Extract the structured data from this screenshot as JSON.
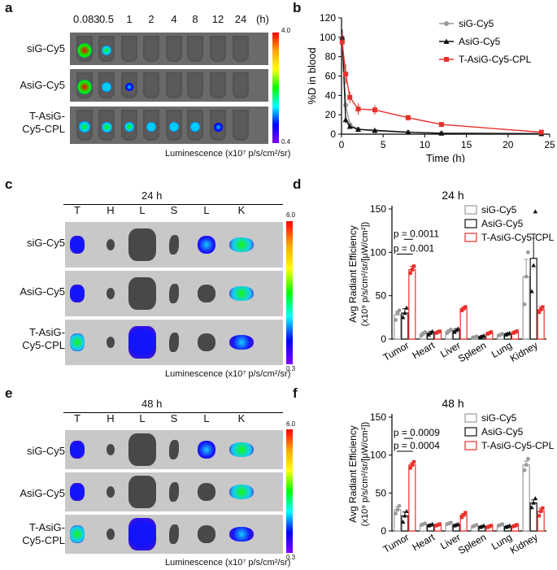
{
  "panel_letters": {
    "a": "a",
    "b": "b",
    "c": "c",
    "d": "d",
    "e": "e",
    "f": "f"
  },
  "panel_a": {
    "timepoints": [
      "0.083",
      "0.5",
      "1",
      "2",
      "4",
      "8",
      "12",
      "24"
    ],
    "unit": "(h)",
    "rows": [
      "siG-Cy5",
      "AsiG-Cy5",
      "T-AsiG-Cy5-CPL"
    ],
    "scale_max": "4.0",
    "scale_min": "0.4",
    "luminescence_label": "Luminescence (x10⁷ p/s/cm²/sr)",
    "intensity": [
      [
        1.0,
        0.45,
        0,
        0,
        0,
        0,
        0,
        0
      ],
      [
        0.95,
        0.35,
        0.25,
        0,
        0,
        0,
        0,
        0
      ],
      [
        0.55,
        0.5,
        0.45,
        0.4,
        0.4,
        0.35,
        0.3,
        0
      ]
    ]
  },
  "panel_c": {
    "title": "24 h",
    "organs": [
      "T",
      "H",
      "L",
      "S",
      "L",
      "K"
    ],
    "rows": [
      "siG-Cy5",
      "AsiG-Cy5",
      "T-AsiG-Cy5-CPL"
    ],
    "scale_max": "6.0",
    "scale_min": "0.3",
    "luminescence_label": "Luminescence (x10⁷ p/s/cm²/sr)"
  },
  "panel_e": {
    "title": "48 h",
    "organs": [
      "T",
      "H",
      "L",
      "S",
      "L",
      "K"
    ],
    "rows": [
      "siG-Cy5",
      "AsiG-Cy5",
      "T-AsiG-Cy5-CPL"
    ],
    "scale_max": "6.0",
    "scale_min": "0.3",
    "luminescence_label": "Luminescence (x10⁷ p/s/cm²/sr)"
  },
  "colors": {
    "gray": "#9a9a9a",
    "black": "#111111",
    "red": "#e8302a"
  },
  "chart_data": [
    {
      "type": "line",
      "panel": "b",
      "xlabel": "Time (h)",
      "ylabel": "%D in blood",
      "xlim": [
        0,
        25
      ],
      "ylim": [
        0,
        120
      ],
      "xticks": [
        0,
        5,
        10,
        15,
        20,
        25
      ],
      "yticks": [
        0,
        20,
        40,
        60,
        80,
        100,
        120
      ],
      "legend_position": "top-right",
      "series": [
        {
          "name": "siG-Cy5",
          "color": "#9a9a9a",
          "marker": "circle",
          "x": [
            0.083,
            0.5,
            1,
            2,
            4,
            8,
            12,
            24
          ],
          "y": [
            100,
            30,
            10,
            5,
            3,
            2,
            1,
            0.5
          ],
          "err": [
            8,
            5,
            3,
            2,
            1,
            1,
            0.5,
            0.3
          ]
        },
        {
          "name": "AsiG-Cy5",
          "color": "#111111",
          "marker": "triangle",
          "x": [
            0.083,
            0.5,
            1,
            2,
            4,
            8,
            12,
            24
          ],
          "y": [
            100,
            15,
            8,
            5,
            4,
            2,
            1,
            0.5
          ],
          "err": [
            8,
            4,
            2,
            1,
            1,
            0.5,
            0.5,
            0.3
          ]
        },
        {
          "name": "T-AsiG-Cy5-CPL",
          "color": "#e8302a",
          "marker": "square",
          "x": [
            0.083,
            0.5,
            1,
            2,
            4,
            8,
            12,
            24
          ],
          "y": [
            95,
            62,
            38,
            26,
            25,
            17,
            10,
            2
          ],
          "err": [
            8,
            10,
            6,
            6,
            5,
            3,
            2,
            1
          ]
        }
      ]
    },
    {
      "type": "bar",
      "panel": "d",
      "title": "24 h",
      "categories": [
        "Tumor",
        "Heart",
        "Liver",
        "Spleen",
        "Lung",
        "Kidney"
      ],
      "ylabel_line1": "Avg Radiant Efficiency",
      "ylabel_line2": "(x10⁹ p/s/cm²/sr/[μW/cm²])",
      "ylim": [
        0,
        150
      ],
      "yticks": [
        0,
        50,
        100,
        150
      ],
      "annotations": [
        "p = 0.0011",
        "p = 0.001"
      ],
      "series": [
        {
          "name": "siG-Cy5",
          "color": "#9a9a9a",
          "values": [
            28,
            6,
            9,
            2,
            5,
            72
          ],
          "err": [
            4,
            2,
            2,
            1,
            1,
            20
          ],
          "points": [
            [
              22,
              30,
              33
            ],
            [
              4,
              6,
              8
            ],
            [
              7,
              9,
              11
            ],
            [
              2,
              2,
              3
            ],
            [
              4,
              5,
              6
            ],
            [
              40,
              72,
              100
            ]
          ]
        },
        {
          "name": "AsiG-Cy5",
          "color": "#111111",
          "values": [
            30,
            7,
            10,
            3,
            6,
            93
          ],
          "err": [
            5,
            2,
            2,
            1,
            1,
            28
          ],
          "points": [
            [
              25,
              30,
              36
            ],
            [
              5,
              7,
              9
            ],
            [
              8,
              10,
              12
            ],
            [
              2,
              3,
              4
            ],
            [
              5,
              6,
              7
            ],
            [
              55,
              85,
              147
            ]
          ]
        },
        {
          "name": "T-AsiG-Cy5-CPL",
          "color": "#e8302a",
          "values": [
            80,
            8,
            35,
            7,
            8,
            34
          ],
          "err": [
            4,
            1,
            2,
            1,
            1,
            3
          ],
          "points": [
            [
              76,
              80,
              84
            ],
            [
              7,
              8,
              9
            ],
            [
              33,
              35,
              37
            ],
            [
              6,
              7,
              8
            ],
            [
              7,
              8,
              9
            ],
            [
              31,
              34,
              37
            ]
          ]
        }
      ]
    },
    {
      "type": "bar",
      "panel": "f",
      "title": "48 h",
      "categories": [
        "Tumor",
        "Heart",
        "Liver",
        "Spleen",
        "Lung",
        "Kidney"
      ],
      "ylabel_line1": "Avg Radiant Efficiency",
      "ylabel_line2": "(x10⁹ p/s/cm²/sr/[μW/cm²])",
      "ylim": [
        0,
        150
      ],
      "yticks": [
        0,
        50,
        100,
        150
      ],
      "annotations": [
        "p = 0.0009",
        "p = 0.0004"
      ],
      "series": [
        {
          "name": "siG-Cy5",
          "color": "#9a9a9a",
          "values": [
            28,
            9,
            10,
            7,
            8,
            87
          ],
          "err": [
            4,
            1,
            1,
            1,
            1,
            5
          ],
          "points": [
            [
              23,
              28,
              33
            ],
            [
              8,
              9,
              10
            ],
            [
              9,
              10,
              11
            ],
            [
              6,
              7,
              8
            ],
            [
              7,
              8,
              9
            ],
            [
              80,
              87,
              95
            ]
          ]
        },
        {
          "name": "AsiG-Cy5",
          "color": "#111111",
          "values": [
            20,
            8,
            8,
            6,
            6,
            37
          ],
          "err": [
            5,
            1,
            1,
            1,
            1,
            4
          ],
          "points": [
            [
              12,
              20,
              26
            ],
            [
              7,
              8,
              9
            ],
            [
              7,
              8,
              9
            ],
            [
              5,
              6,
              7
            ],
            [
              5,
              6,
              7
            ],
            [
              31,
              37,
              43
            ]
          ]
        },
        {
          "name": "T-AsiG-Cy5-CPL",
          "color": "#e8302a",
          "values": [
            87,
            8,
            21,
            6,
            7,
            26
          ],
          "err": [
            3,
            1,
            2,
            1,
            1,
            4
          ],
          "points": [
            [
              83,
              87,
              91
            ],
            [
              7,
              8,
              9
            ],
            [
              18,
              21,
              24
            ],
            [
              5,
              6,
              7
            ],
            [
              6,
              7,
              8
            ],
            [
              20,
              26,
              30
            ]
          ]
        }
      ]
    }
  ]
}
